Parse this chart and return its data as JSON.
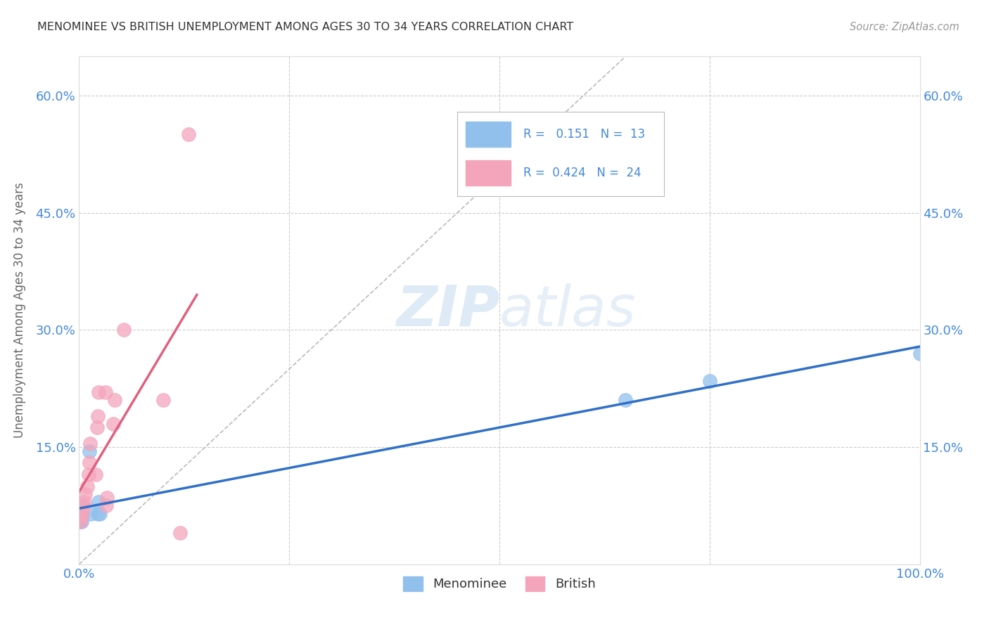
{
  "title": "MENOMINEE VS BRITISH UNEMPLOYMENT AMONG AGES 30 TO 34 YEARS CORRELATION CHART",
  "source": "Source: ZipAtlas.com",
  "ylabel": "Unemployment Among Ages 30 to 34 years",
  "xlim": [
    0.0,
    1.0
  ],
  "ylim": [
    0.0,
    0.65
  ],
  "xticks": [
    0.0,
    0.25,
    0.5,
    0.75,
    1.0
  ],
  "xticklabels": [
    "0.0%",
    "",
    "",
    "",
    "100.0%"
  ],
  "yticks": [
    0.15,
    0.3,
    0.45,
    0.6
  ],
  "yticklabels": [
    "15.0%",
    "30.0%",
    "45.0%",
    "60.0%"
  ],
  "watermark_zip": "ZIP",
  "watermark_atlas": "atlas",
  "menominee_color": "#92C0EC",
  "british_color": "#F4A5BC",
  "menominee_line_color": "#3070C8",
  "british_line_color": "#E06080",
  "legend_R_menominee": "0.151",
  "legend_N_menominee": "13",
  "legend_R_british": "0.424",
  "legend_N_british": "24",
  "menominee_x": [
    0.001,
    0.002,
    0.003,
    0.004,
    0.005,
    0.012,
    0.014,
    0.022,
    0.023,
    0.025,
    0.65,
    0.75,
    1.0
  ],
  "menominee_y": [
    0.055,
    0.065,
    0.055,
    0.065,
    0.075,
    0.145,
    0.065,
    0.065,
    0.08,
    0.065,
    0.21,
    0.235,
    0.27
  ],
  "british_x": [
    0.001,
    0.002,
    0.003,
    0.004,
    0.005,
    0.006,
    0.007,
    0.01,
    0.011,
    0.012,
    0.013,
    0.02,
    0.021,
    0.022,
    0.023,
    0.031,
    0.032,
    0.033,
    0.041,
    0.042,
    0.053,
    0.1,
    0.12,
    0.13
  ],
  "british_y": [
    0.055,
    0.06,
    0.065,
    0.07,
    0.075,
    0.08,
    0.09,
    0.1,
    0.115,
    0.13,
    0.155,
    0.115,
    0.175,
    0.19,
    0.22,
    0.22,
    0.075,
    0.085,
    0.18,
    0.21,
    0.3,
    0.21,
    0.04,
    0.55
  ],
  "background_color": "#FFFFFF",
  "grid_color": "#CCCCCC",
  "title_color": "#333333",
  "axis_label_color": "#666666",
  "tick_color": "#4488DD",
  "source_color": "#999999"
}
